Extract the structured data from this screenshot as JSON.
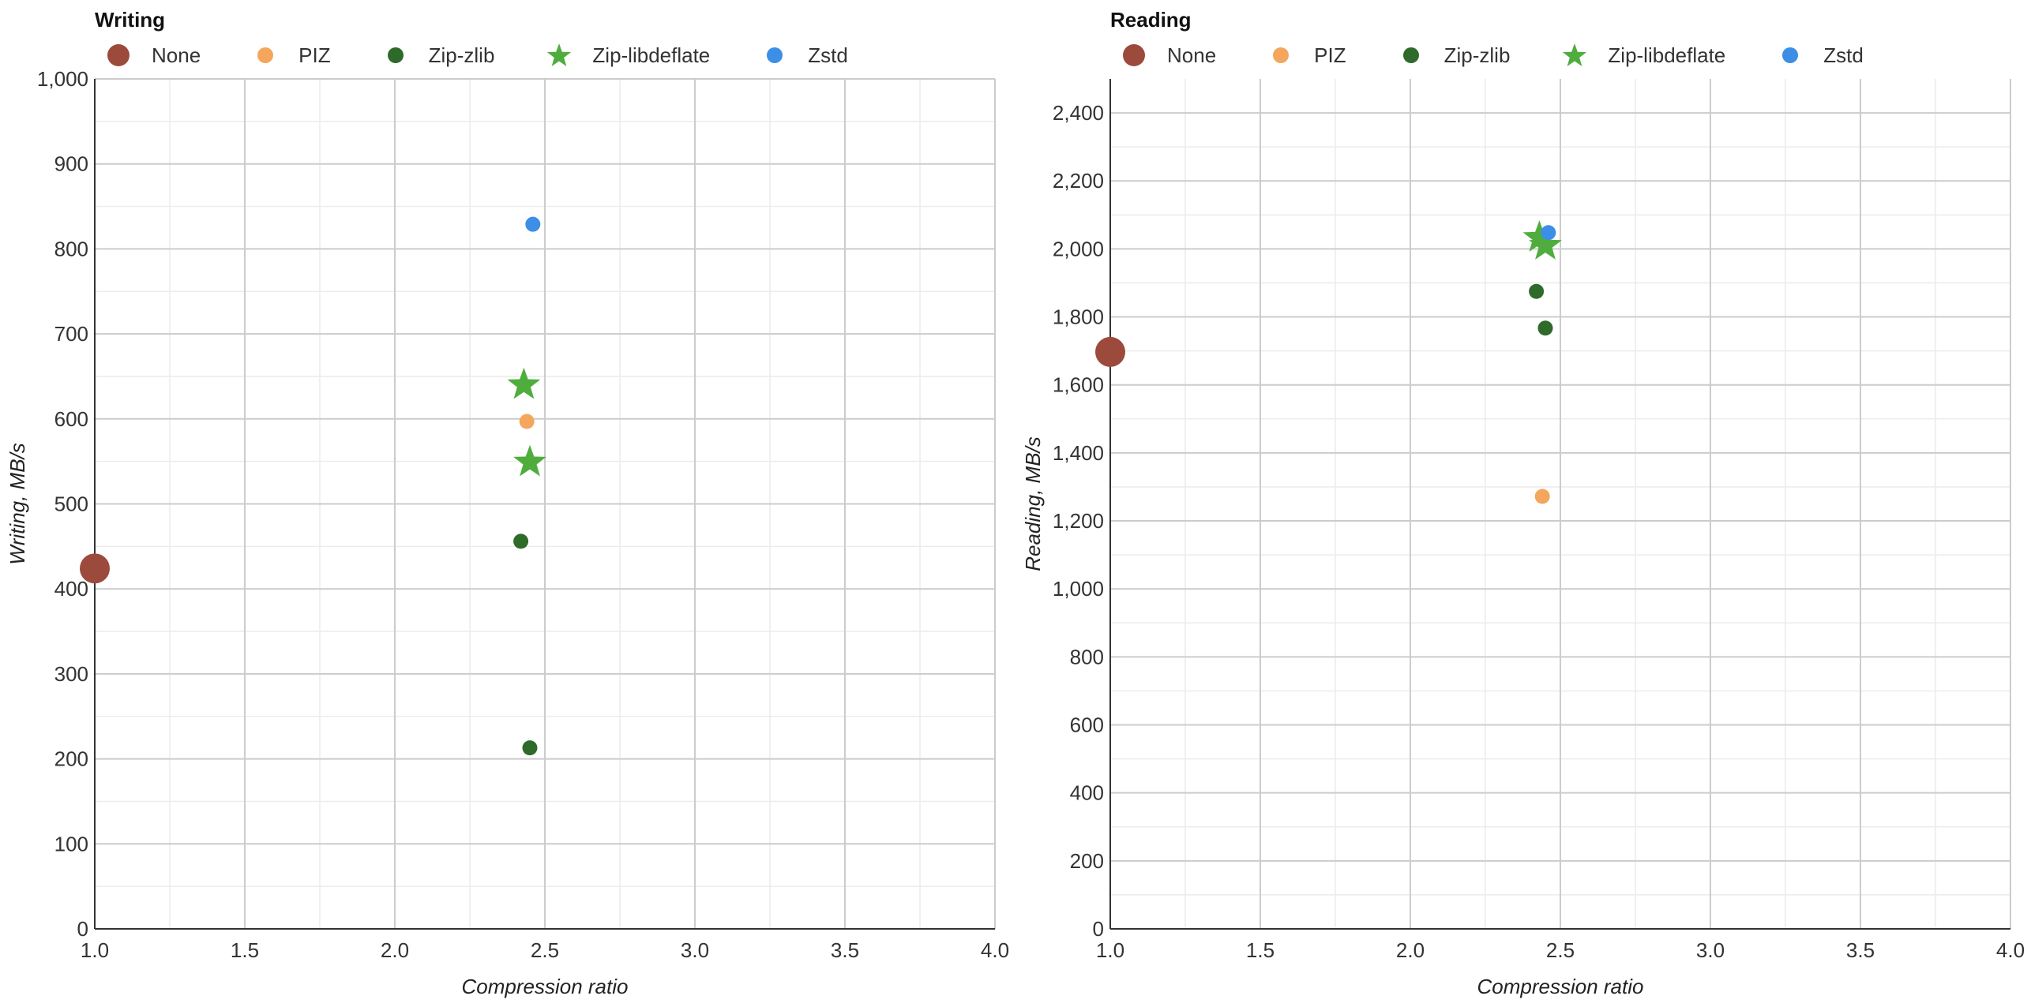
{
  "legend": [
    {
      "name": "None",
      "color": "#9b4a3c",
      "marker": "circle-large"
    },
    {
      "name": "PIZ",
      "color": "#f4a65c",
      "marker": "circle"
    },
    {
      "name": "Zip-zlib",
      "color": "#2e6b2a",
      "marker": "circle"
    },
    {
      "name": "Zip-libdeflate",
      "color": "#4fad3e",
      "marker": "star"
    },
    {
      "name": "Zstd",
      "color": "#3c8ee6",
      "marker": "circle"
    }
  ],
  "chart_data": [
    {
      "type": "scatter",
      "title": "Writing",
      "xlabel": "Compression ratio",
      "ylabel": "Writing, MB/s",
      "xlim": [
        1.0,
        4.0
      ],
      "ylim": [
        0,
        1000
      ],
      "xticks": [
        "1.0",
        "1.5",
        "2.0",
        "2.5",
        "3.0",
        "3.5",
        "4.0"
      ],
      "yticks": [
        "0",
        "100",
        "200",
        "300",
        "400",
        "500",
        "600",
        "700",
        "800",
        "900",
        "1,000"
      ],
      "grid": true,
      "legend_position": "top-left",
      "series": [
        {
          "name": "None",
          "points": [
            [
              1.0,
              424
            ]
          ]
        },
        {
          "name": "PIZ",
          "points": [
            [
              2.44,
              597
            ]
          ]
        },
        {
          "name": "Zip-zlib",
          "points": [
            [
              2.42,
              456
            ],
            [
              2.45,
              213
            ]
          ]
        },
        {
          "name": "Zip-libdeflate",
          "points": [
            [
              2.43,
              640
            ],
            [
              2.45,
              549
            ]
          ]
        },
        {
          "name": "Zstd",
          "points": [
            [
              2.46,
              829
            ]
          ]
        }
      ]
    },
    {
      "type": "scatter",
      "title": "Reading",
      "xlabel": "Compression ratio",
      "ylabel": "Reading, MB/s",
      "xlim": [
        1.0,
        4.0
      ],
      "ylim": [
        0,
        2500
      ],
      "xticks": [
        "1.0",
        "1.5",
        "2.0",
        "2.5",
        "3.0",
        "3.5",
        "4.0"
      ],
      "yticks": [
        "0",
        "200",
        "400",
        "600",
        "800",
        "1,000",
        "1,200",
        "1,400",
        "1,600",
        "1,800",
        "2,000",
        "2,200",
        "2,400"
      ],
      "grid": true,
      "legend_position": "top-left",
      "series": [
        {
          "name": "None",
          "points": [
            [
              1.0,
              1697
            ]
          ]
        },
        {
          "name": "PIZ",
          "points": [
            [
              2.44,
              1272
            ]
          ]
        },
        {
          "name": "Zip-zlib",
          "points": [
            [
              2.42,
              1875
            ],
            [
              2.45,
              1767
            ]
          ]
        },
        {
          "name": "Zip-libdeflate",
          "points": [
            [
              2.43,
              2033
            ],
            [
              2.45,
              2010
            ]
          ]
        },
        {
          "name": "Zstd",
          "points": [
            [
              2.46,
              2048
            ]
          ]
        }
      ]
    }
  ]
}
